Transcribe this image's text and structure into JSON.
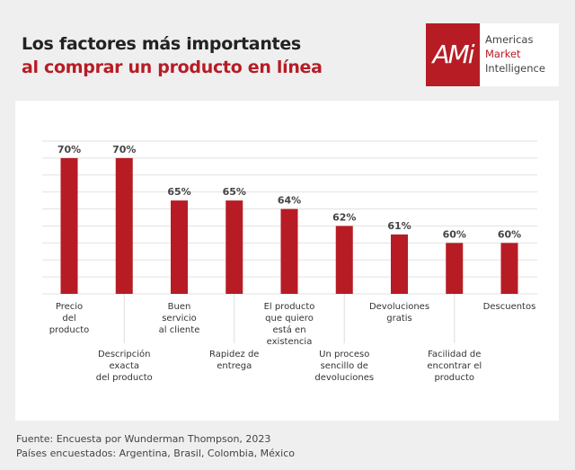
{
  "title": {
    "line1": "Los factores más importantes",
    "line2": "al comprar un producto en línea"
  },
  "logo": {
    "mark": "AMi",
    "line1": "Americas",
    "line2": "Market",
    "line3": "Intelligence"
  },
  "footer": {
    "source": "Fuente:  Encuesta por Wunderman Thompson, 2023",
    "countries": "Países encuestados: Argentina, Brasil, Colombia, México"
  },
  "colors": {
    "bar": "#b71c25",
    "accent": "#b71c25"
  },
  "chart_data": {
    "type": "bar",
    "title": "Los factores más importantes al comprar un producto en línea",
    "categories": [
      "Precio\ndel\nproducto",
      "Descripción\nexacta\ndel producto",
      "Buen\nservicio\nal cliente",
      "Rapidez de\nentrega",
      "El producto\nque quiero\nestá en\nexistencia",
      "Un proceso\nsencillo de\ndevoluciones",
      "Devoluciones\ngratis",
      "Facilidad de\nencontrar el\nproducto",
      "Descuentos"
    ],
    "values": [
      70,
      70,
      65,
      65,
      64,
      62,
      61,
      60,
      60
    ],
    "data_labels": [
      "70%",
      "70%",
      "65%",
      "65%",
      "64%",
      "62%",
      "61%",
      "60%",
      "60%"
    ],
    "ylim": [
      54,
      72
    ],
    "grid": true,
    "grid_step": 2,
    "xlabel": "",
    "ylabel": ""
  }
}
